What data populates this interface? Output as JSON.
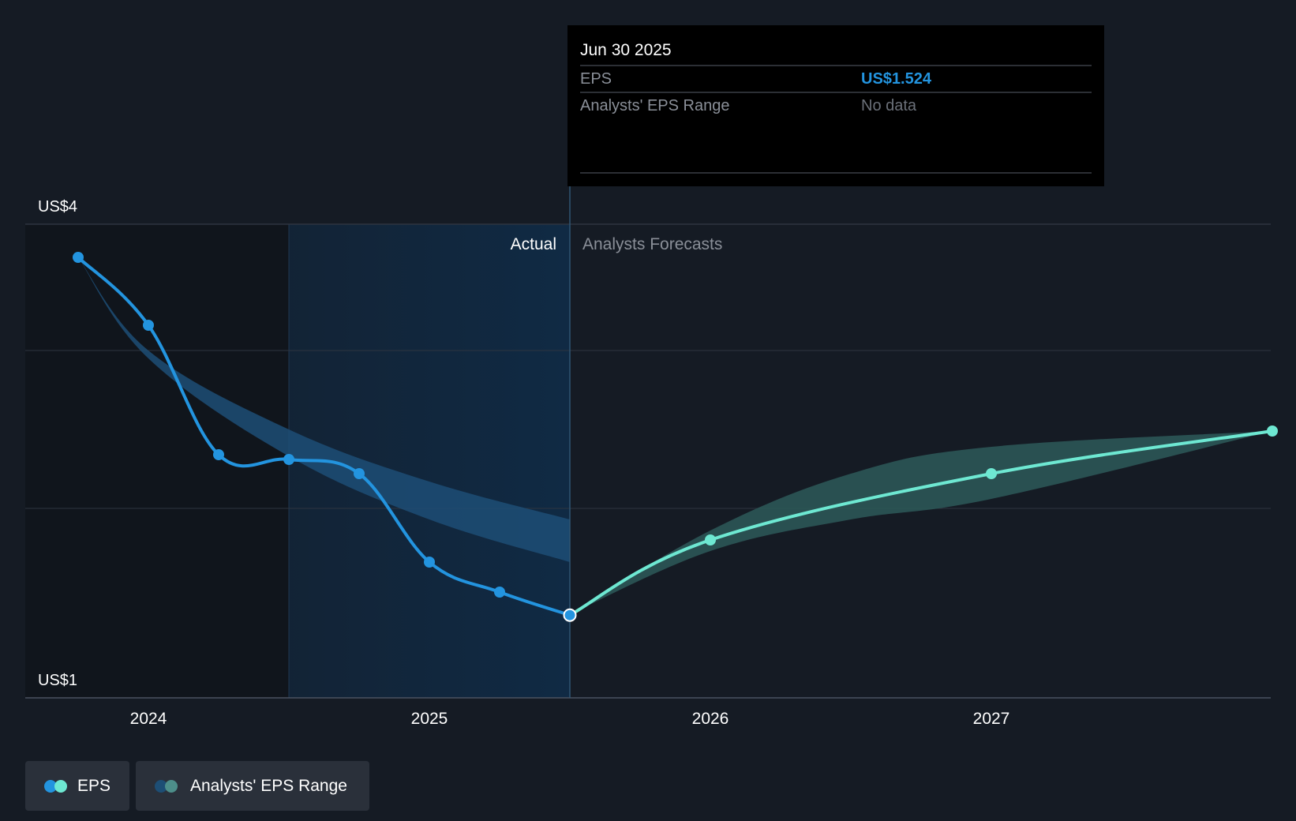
{
  "colors": {
    "background": "#151b24",
    "eps_actual": "#2394df",
    "eps_forecast": "#6ee8d2",
    "range_actual": "#1d4e75",
    "range_forecast": "#2b5656",
    "past_shade": "#10151c",
    "highlight": "#102a44",
    "grid": "#2e3540",
    "tooltip_bg": "#000000",
    "muted_text": "#8a8f98"
  },
  "tooltip": {
    "date": "Jun 30 2025",
    "rows": [
      {
        "label": "EPS",
        "value": "US$1.524"
      },
      {
        "label": "Analysts' EPS Range",
        "value": "No data"
      }
    ]
  },
  "region_labels": {
    "actual": "Actual",
    "forecast": "Analysts Forecasts"
  },
  "legend": [
    {
      "label": "EPS",
      "icon": "eps-legend-icon"
    },
    {
      "label": "Analysts' EPS Range",
      "icon": "range-legend-icon"
    }
  ],
  "chart_data": {
    "type": "line",
    "title": "",
    "xlabel": "",
    "ylabel": "",
    "y_tick_labels": [
      "US$4",
      "US$1"
    ],
    "ylim": [
      1,
      4
    ],
    "xlim": [
      2023.65,
      2027.92
    ],
    "x_ticks": [
      2024,
      2025,
      2026,
      2027
    ],
    "x_tick_labels": [
      "2024",
      "2025",
      "2026",
      "2027"
    ],
    "grid": true,
    "divider_x": 2025.5,
    "highlight_range": [
      2024.5,
      2025.5
    ],
    "series": [
      {
        "name": "EPS",
        "kind": "actual",
        "points": [
          {
            "x": 2023.75,
            "y": 3.79
          },
          {
            "x": 2024.0,
            "y": 3.36
          },
          {
            "x": 2024.25,
            "y": 2.54
          },
          {
            "x": 2024.5,
            "y": 2.51
          },
          {
            "x": 2024.75,
            "y": 2.42
          },
          {
            "x": 2025.0,
            "y": 1.86
          },
          {
            "x": 2025.25,
            "y": 1.67
          },
          {
            "x": 2025.5,
            "y": 1.524
          }
        ]
      },
      {
        "name": "EPS",
        "kind": "forecast",
        "points": [
          {
            "x": 2025.5,
            "y": 1.524
          },
          {
            "x": 2026.0,
            "y": 2.0
          },
          {
            "x": 2027.0,
            "y": 2.42
          },
          {
            "x": 2028.0,
            "y": 2.69
          }
        ]
      },
      {
        "name": "Analysts' EPS Range",
        "kind": "range-actual",
        "upper": [
          {
            "x": 2023.75,
            "y": 3.79
          },
          {
            "x": 2024.0,
            "y": 3.2
          },
          {
            "x": 2024.5,
            "y": 2.7
          },
          {
            "x": 2025.0,
            "y": 2.37
          },
          {
            "x": 2025.5,
            "y": 2.13
          }
        ],
        "lower": [
          {
            "x": 2023.75,
            "y": 3.79
          },
          {
            "x": 2024.0,
            "y": 3.15
          },
          {
            "x": 2024.5,
            "y": 2.53
          },
          {
            "x": 2025.0,
            "y": 2.13
          },
          {
            "x": 2025.5,
            "y": 1.86
          }
        ]
      },
      {
        "name": "Analysts' EPS Range",
        "kind": "range-forecast",
        "upper": [
          {
            "x": 2025.5,
            "y": 1.53
          },
          {
            "x": 2026.0,
            "y": 2.06
          },
          {
            "x": 2026.5,
            "y": 2.42
          },
          {
            "x": 2027.0,
            "y": 2.59
          },
          {
            "x": 2028.0,
            "y": 2.69
          }
        ],
        "lower": [
          {
            "x": 2025.5,
            "y": 1.53
          },
          {
            "x": 2026.0,
            "y": 1.93
          },
          {
            "x": 2026.5,
            "y": 2.13
          },
          {
            "x": 2027.0,
            "y": 2.26
          },
          {
            "x": 2028.0,
            "y": 2.69
          }
        ]
      }
    ],
    "legend_position": "bottom-left"
  }
}
